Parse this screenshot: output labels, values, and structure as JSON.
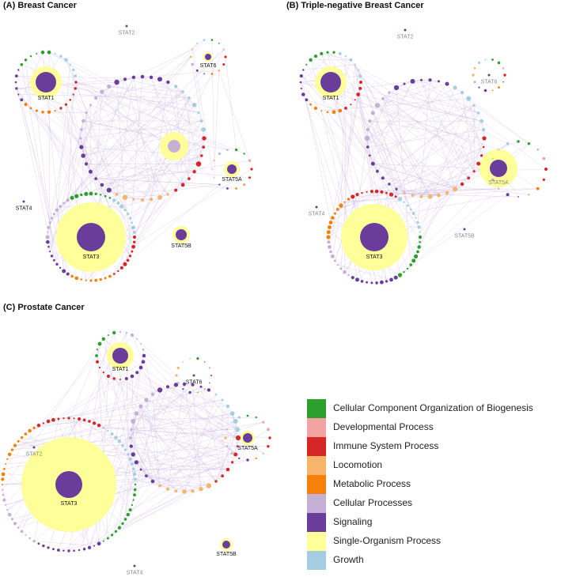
{
  "panels": {
    "a": {
      "title": "(A)  Breast Cancer"
    },
    "b": {
      "title": "(B)  Triple-negative Breast Cancer"
    },
    "c": {
      "title": "(C)  Prostate Cancer"
    }
  },
  "hubs": {
    "a": {
      "stat1": "STAT1",
      "stat2": "STAT2",
      "stat3": "STAT3",
      "stat4": "STAT4",
      "stat5a": "STAT5A",
      "stat5b": "STAT5B",
      "stat6": "STAT6"
    },
    "b": {
      "stat1": "STAT1",
      "stat2": "STAT2",
      "stat3": "STAT3",
      "stat4": "STAT4",
      "stat5a": "STAT5A",
      "stat5b": "STAT5B",
      "stat6": "STAT6"
    },
    "c": {
      "stat1": "STAT1",
      "stat2": "STAT2",
      "stat3": "STAT3",
      "stat4": "STAT4",
      "stat5a": "STAT5A",
      "stat5b": "STAT5B",
      "stat6": "STAT6"
    }
  },
  "colors": {
    "cellular_component": "#2ca02c",
    "developmental": "#f4a3a3",
    "immune": "#d62728",
    "locomotion": "#f7b56b",
    "metabolic": "#f7800b",
    "cellular_processes": "#c5b0d5",
    "signaling": "#6a3d9a",
    "single_organism": "#ffff99",
    "growth": "#a6cee3",
    "edge": "#c9b3e0"
  },
  "legend": [
    {
      "label": "Cellular Component Organization of Biogenesis",
      "color": "#2ca02c"
    },
    {
      "label": "Developmental Process",
      "color": "#f4a3a3"
    },
    {
      "label": "Immune System Process",
      "color": "#d62728"
    },
    {
      "label": "Locomotion",
      "color": "#f7b56b"
    },
    {
      "label": "Metabolic Process",
      "color": "#f7800b"
    },
    {
      "label": "Cellular Processes",
      "color": "#c5b0d5"
    },
    {
      "label": "Signaling",
      "color": "#6a3d9a"
    },
    {
      "label": "Single-Organism Process",
      "color": "#ffff99"
    },
    {
      "label": "Growth",
      "color": "#a6cee3"
    }
  ]
}
